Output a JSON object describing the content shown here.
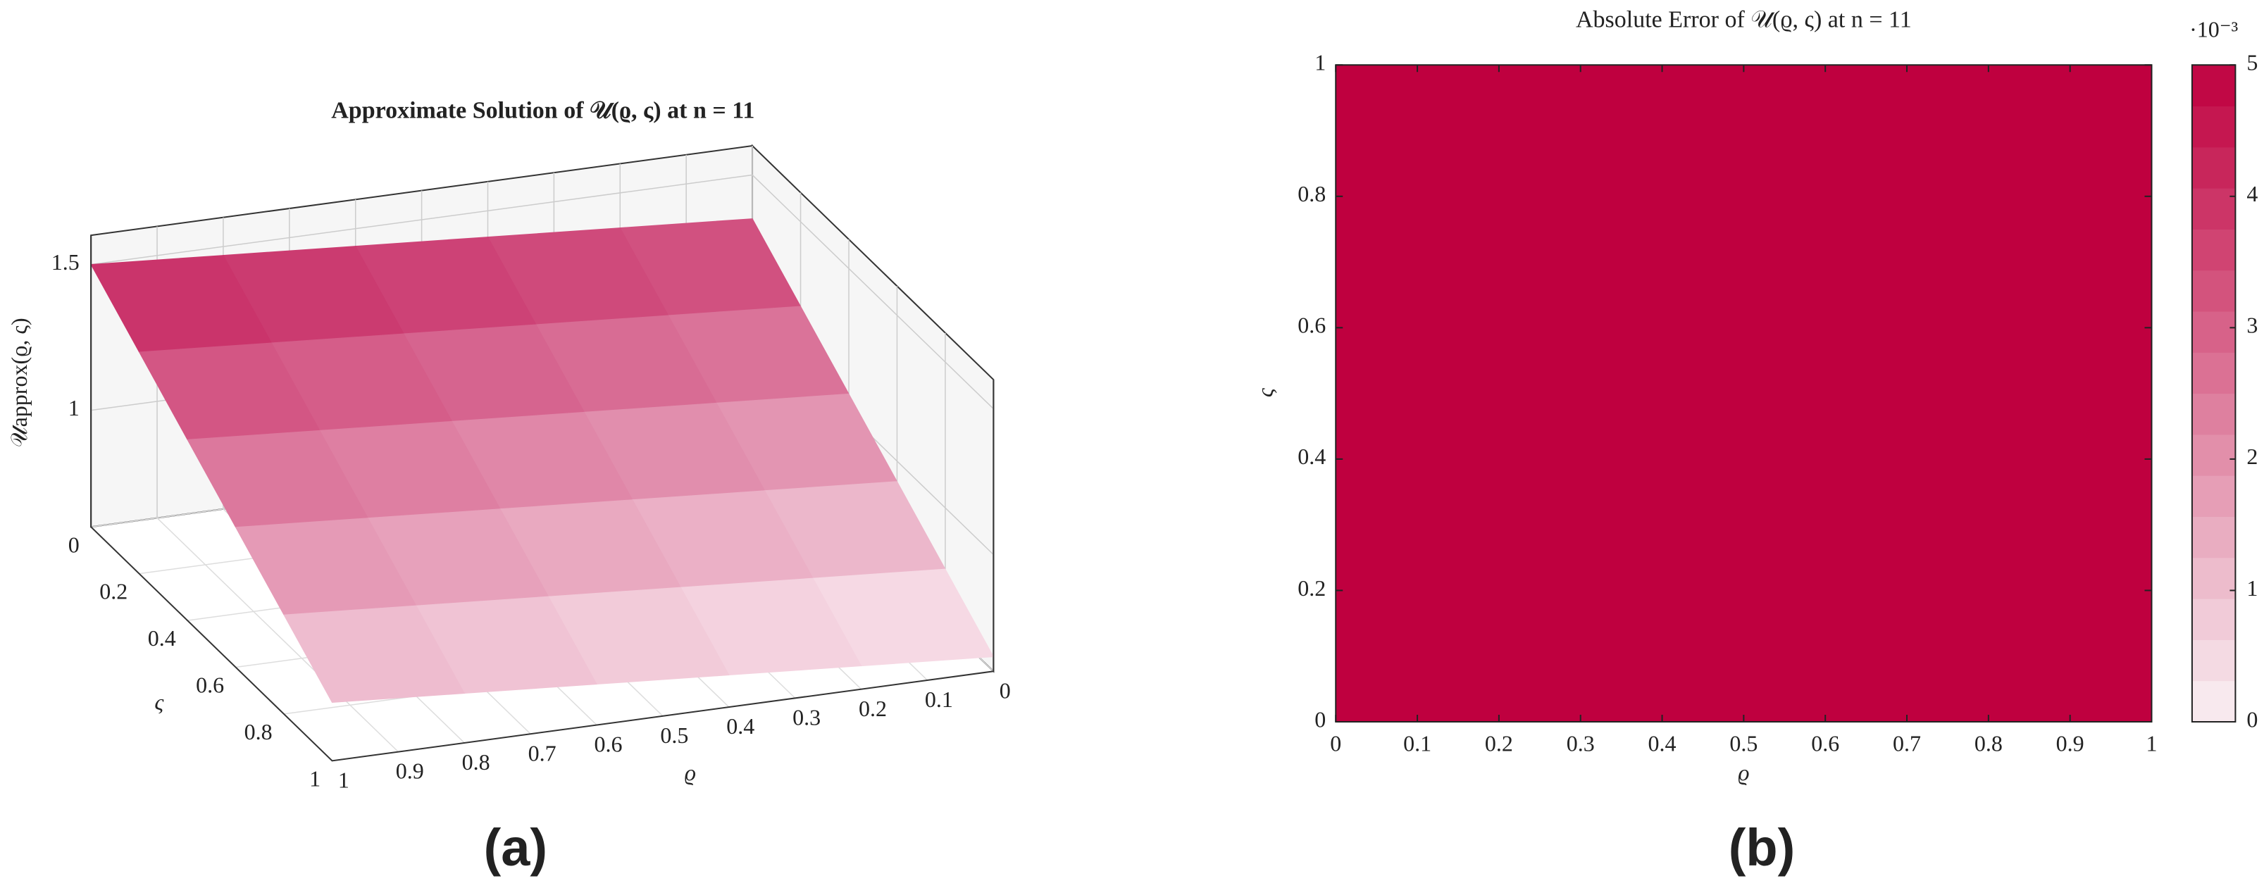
{
  "chart_data": [
    {
      "type": "surface",
      "title": "Approximate Solution of 𝒰(ϱ, ς) at n = 11",
      "xlabel": "ϱ",
      "ylabel": "ς",
      "zlabel": "𝒰approx(ϱ, ς)",
      "x": [
        0,
        0.2,
        0.4,
        0.6,
        0.8,
        1
      ],
      "y": [
        0,
        0.2,
        0.4,
        0.6,
        0.8,
        1
      ],
      "z": [
        [
          1.35,
          1.38,
          1.41,
          1.44,
          1.47,
          1.5
        ],
        [
          1.21,
          1.24,
          1.27,
          1.3,
          1.33,
          1.36
        ],
        [
          1.07,
          1.1,
          1.13,
          1.16,
          1.19,
          1.22
        ],
        [
          0.93,
          0.96,
          0.99,
          1.02,
          1.05,
          1.08
        ],
        [
          0.79,
          0.82,
          0.85,
          0.88,
          0.91,
          0.94
        ],
        [
          0.65,
          0.68,
          0.71,
          0.74,
          0.77,
          0.8
        ]
      ],
      "xlim": [
        0,
        1
      ],
      "ylim": [
        0,
        1
      ],
      "zlim": [
        0.6,
        1.6
      ],
      "xticks": [
        0,
        0.1,
        0.2,
        0.3,
        0.4,
        0.5,
        0.6,
        0.7,
        0.8,
        0.9,
        1
      ],
      "yticks": [
        0,
        0.2,
        0.4,
        0.6,
        0.8,
        1
      ],
      "zticks": [
        1,
        1.5
      ],
      "colormap": [
        "#fbeef3",
        "#c41f5c"
      ],
      "grid": true,
      "panel_label": "(a)"
    },
    {
      "type": "heatmap",
      "title": "Absolute Error of 𝒰(ϱ, ς) at n = 11",
      "xlabel": "ϱ",
      "ylabel": "ς",
      "x": [
        0,
        1
      ],
      "y": [
        0,
        1
      ],
      "z": [
        [
          5,
          5
        ],
        [
          5,
          5
        ]
      ],
      "xlim": [
        0,
        1
      ],
      "ylim": [
        0,
        1
      ],
      "xticks": [
        0,
        0.1,
        0.2,
        0.3,
        0.4,
        0.5,
        0.6,
        0.7,
        0.8,
        0.9,
        1
      ],
      "yticks": [
        0,
        0.2,
        0.4,
        0.6,
        0.8,
        1
      ],
      "clim": [
        0,
        5
      ],
      "cticks": [
        0,
        1,
        2,
        3,
        4,
        5
      ],
      "colorbar_scale_label": "·10⁻³",
      "levels": 16,
      "colormap": [
        "#faf0f4",
        "#bf003f"
      ],
      "panel_label": "(b)"
    }
  ]
}
